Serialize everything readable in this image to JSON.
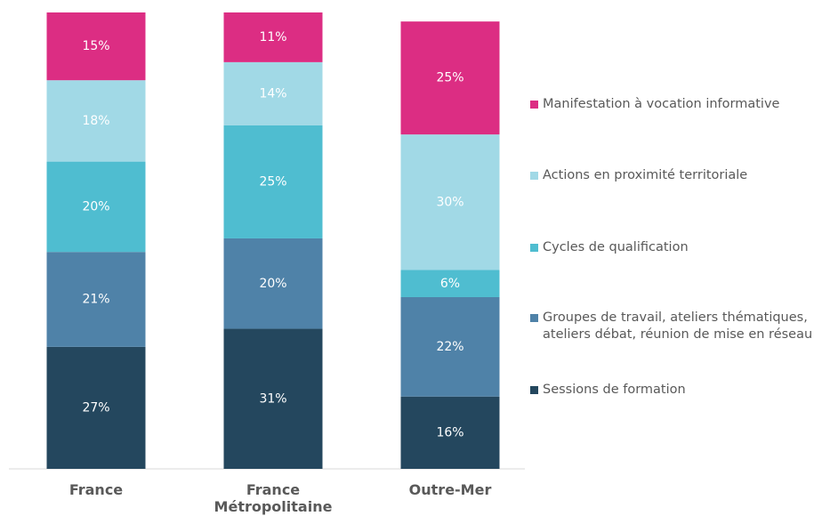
{
  "chart_data": {
    "type": "stacked_bar",
    "categories": [
      "France",
      "France Métropolitaine",
      "Outre-Mer"
    ],
    "ylim": [
      0,
      101
    ],
    "series": [
      {
        "name": "Sessions de formation",
        "color": "#24475e",
        "values": [
          27,
          31,
          16
        ],
        "value_labels": [
          "27%",
          "31%",
          "16%"
        ]
      },
      {
        "name": "Groupes de travail, ateliers thématiques, ateliers débat, réunion de mise en réseau",
        "color": "#4f82a8",
        "values": [
          21,
          20,
          22
        ],
        "value_labels": [
          "21%",
          "20%",
          "22%"
        ]
      },
      {
        "name": "Cycles de qualification",
        "color": "#4fbdd0",
        "values": [
          20,
          25,
          6
        ],
        "value_labels": [
          "20%",
          "25%",
          "6%"
        ]
      },
      {
        "name": "Actions en proximité territoriale",
        "color": "#a1d9e6",
        "values": [
          18,
          14,
          30
        ],
        "value_labels": [
          "18%",
          "14%",
          "30%"
        ]
      },
      {
        "name": "Manifestation à vocation informative",
        "color": "#dc2d83",
        "values": [
          15,
          11,
          25
        ],
        "value_labels": [
          "15%",
          "11%",
          "25%"
        ]
      }
    ],
    "legend": "right"
  }
}
